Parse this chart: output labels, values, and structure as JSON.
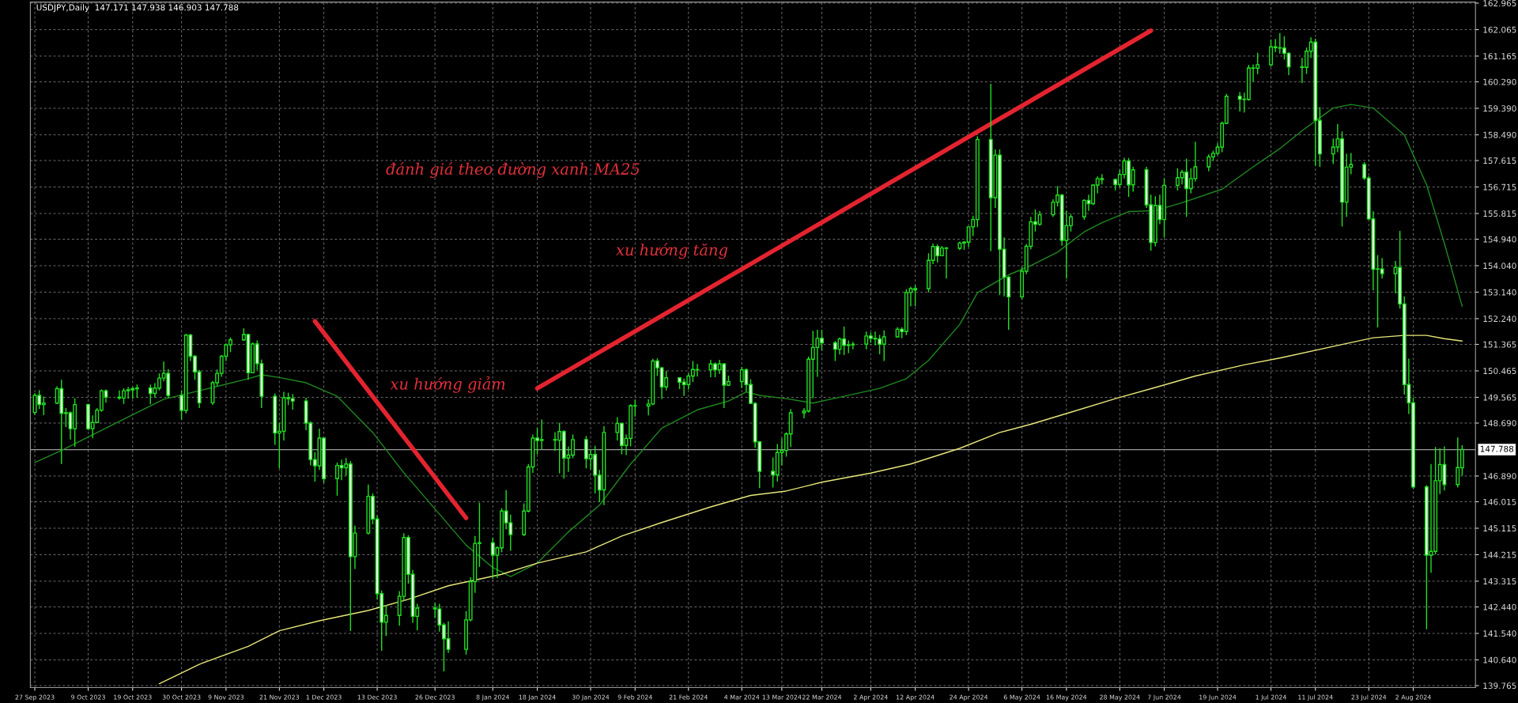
{
  "chart_data": {
    "type": "candlestick",
    "title": "USDJPY,Daily  147.171 147.938 146.903 147.788",
    "color": "#22e022",
    "grid": true,
    "x": [
      "2023-09-27",
      "2023-09-28",
      "2023-09-29",
      "2023-10-02",
      "2023-10-03",
      "2023-10-04",
      "2023-10-05",
      "2023-10-06",
      "2023-10-09",
      "2023-10-10",
      "2023-10-11",
      "2023-10-12",
      "2023-10-13",
      "2023-10-16",
      "2023-10-17",
      "2023-10-18",
      "2023-10-19",
      "2023-10-20",
      "2023-10-23",
      "2023-10-24",
      "2023-10-25",
      "2023-10-26",
      "2023-10-27",
      "2023-10-30",
      "2023-10-31",
      "2023-11-01",
      "2023-11-02",
      "2023-11-03",
      "2023-11-06",
      "2023-11-07",
      "2023-11-08",
      "2023-11-09",
      "2023-11-10",
      "2023-11-13",
      "2023-11-14",
      "2023-11-15",
      "2023-11-16",
      "2023-11-17",
      "2023-11-20",
      "2023-11-21",
      "2023-11-22",
      "2023-11-23",
      "2023-11-24",
      "2023-11-27",
      "2023-11-28",
      "2023-11-29",
      "2023-11-30",
      "2023-12-01",
      "2023-12-04",
      "2023-12-05",
      "2023-12-06",
      "2023-12-07",
      "2023-12-08",
      "2023-12-11",
      "2023-12-12",
      "2023-12-13",
      "2023-12-14",
      "2023-12-15",
      "2023-12-18",
      "2023-12-19",
      "2023-12-20",
      "2023-12-21",
      "2023-12-22",
      "2023-12-26",
      "2023-12-27",
      "2023-12-28",
      "2023-12-29",
      "2024-01-02",
      "2024-01-03",
      "2024-01-04",
      "2024-01-05",
      "2024-01-08",
      "2024-01-09",
      "2024-01-10",
      "2024-01-11",
      "2024-01-12",
      "2024-01-15",
      "2024-01-16",
      "2024-01-17",
      "2024-01-18",
      "2024-01-19",
      "2024-01-22",
      "2024-01-23",
      "2024-01-24",
      "2024-01-25",
      "2024-01-26",
      "2024-01-29",
      "2024-01-30",
      "2024-01-31",
      "2024-02-01",
      "2024-02-02",
      "2024-02-05",
      "2024-02-06",
      "2024-02-07",
      "2024-02-08",
      "2024-02-09",
      "2024-02-12",
      "2024-02-13",
      "2024-02-14",
      "2024-02-15",
      "2024-02-16",
      "2024-02-19",
      "2024-02-20",
      "2024-02-21",
      "2024-02-22",
      "2024-02-23",
      "2024-02-26",
      "2024-02-27",
      "2024-02-28",
      "2024-02-29",
      "2024-03-01",
      "2024-03-04",
      "2024-03-05",
      "2024-03-06",
      "2024-03-07",
      "2024-03-08",
      "2024-03-11",
      "2024-03-12",
      "2024-03-13",
      "2024-03-14",
      "2024-03-15",
      "2024-03-18",
      "2024-03-19",
      "2024-03-20",
      "2024-03-21",
      "2024-03-22",
      "2024-03-25",
      "2024-03-26",
      "2024-03-27",
      "2024-03-28",
      "2024-03-29",
      "2024-04-01",
      "2024-04-02",
      "2024-04-03",
      "2024-04-04",
      "2024-04-05",
      "2024-04-08",
      "2024-04-09",
      "2024-04-10",
      "2024-04-11",
      "2024-04-12",
      "2024-04-15",
      "2024-04-16",
      "2024-04-17",
      "2024-04-18",
      "2024-04-19",
      "2024-04-22",
      "2024-04-23",
      "2024-04-24",
      "2024-04-25",
      "2024-04-26",
      "2024-04-29",
      "2024-04-30",
      "2024-05-01",
      "2024-05-02",
      "2024-05-03",
      "2024-05-06",
      "2024-05-07",
      "2024-05-08",
      "2024-05-09",
      "2024-05-10",
      "2024-05-13",
      "2024-05-14",
      "2024-05-15",
      "2024-05-16",
      "2024-05-17",
      "2024-05-20",
      "2024-05-21",
      "2024-05-22",
      "2024-05-23",
      "2024-05-24",
      "2024-05-27",
      "2024-05-28",
      "2024-05-29",
      "2024-05-30",
      "2024-05-31",
      "2024-06-03",
      "2024-06-04",
      "2024-06-05",
      "2024-06-06",
      "2024-06-07",
      "2024-06-10",
      "2024-06-11",
      "2024-06-12",
      "2024-06-13",
      "2024-06-14",
      "2024-06-17",
      "2024-06-18",
      "2024-06-19",
      "2024-06-20",
      "2024-06-21",
      "2024-06-24",
      "2024-06-25",
      "2024-06-26",
      "2024-06-27",
      "2024-06-28",
      "2024-07-01",
      "2024-07-02",
      "2024-07-03",
      "2024-07-04",
      "2024-07-05",
      "2024-07-08",
      "2024-07-09",
      "2024-07-10",
      "2024-07-11",
      "2024-07-12",
      "2024-07-15",
      "2024-07-16",
      "2024-07-17",
      "2024-07-18",
      "2024-07-19",
      "2024-07-22",
      "2024-07-23",
      "2024-07-24",
      "2024-07-25",
      "2024-07-26",
      "2024-07-29",
      "2024-07-30",
      "2024-07-31",
      "2024-08-01",
      "2024-08-02",
      "2024-08-05",
      "2024-08-06",
      "2024-08-07",
      "2024-08-08",
      "2024-08-09",
      "2024-08-12",
      "2024-08-13"
    ],
    "ohlc": [
      [
        149.05,
        149.71,
        148.97,
        149.63
      ],
      [
        149.63,
        149.81,
        149.17,
        149.32
      ],
      [
        149.32,
        149.59,
        148.96,
        149.37
      ],
      [
        149.37,
        149.94,
        149.34,
        149.86
      ],
      [
        149.86,
        150.16,
        147.3,
        149.02
      ],
      [
        149.02,
        149.21,
        148.55,
        149.04
      ],
      [
        149.04,
        149.09,
        148.13,
        148.5
      ],
      [
        148.5,
        149.53,
        147.88,
        149.32
      ],
      [
        149.32,
        149.35,
        148.45,
        148.5
      ],
      [
        148.5,
        148.95,
        148.17,
        148.71
      ],
      [
        148.71,
        149.2,
        148.71,
        149.13
      ],
      [
        149.13,
        149.83,
        149.07,
        149.79
      ],
      [
        149.79,
        149.83,
        149.38,
        149.57
      ],
      [
        149.57,
        149.8,
        149.48,
        149.54
      ],
      [
        149.54,
        149.87,
        149.34,
        149.79
      ],
      [
        149.79,
        149.92,
        149.52,
        149.82
      ],
      [
        149.82,
        149.92,
        149.52,
        149.86
      ],
      [
        149.86,
        150.0,
        149.55,
        149.88
      ],
      [
        149.88,
        150.0,
        149.33,
        149.7
      ],
      [
        149.7,
        150.05,
        149.55,
        149.88
      ],
      [
        149.88,
        150.38,
        149.8,
        150.22
      ],
      [
        150.22,
        150.78,
        150.11,
        150.38
      ],
      [
        150.38,
        150.52,
        149.55,
        149.63
      ],
      [
        149.63,
        149.8,
        148.8,
        149.12
      ],
      [
        149.12,
        151.72,
        149.02,
        151.68
      ],
      [
        151.68,
        151.72,
        150.8,
        150.96
      ],
      [
        150.96,
        151.0,
        150.16,
        150.43
      ],
      [
        150.43,
        150.5,
        149.2,
        149.38
      ],
      [
        149.38,
        150.12,
        149.3,
        150.06
      ],
      [
        150.06,
        150.51,
        149.95,
        150.38
      ],
      [
        150.38,
        151.0,
        150.26,
        150.96
      ],
      [
        150.96,
        151.4,
        150.8,
        151.35
      ],
      [
        151.35,
        151.6,
        151.1,
        151.52
      ],
      [
        151.52,
        151.91,
        151.48,
        151.7
      ],
      [
        151.7,
        151.72,
        150.16,
        150.4
      ],
      [
        150.4,
        151.43,
        150.38,
        151.38
      ],
      [
        151.38,
        151.5,
        150.5,
        150.71
      ],
      [
        150.71,
        150.85,
        149.2,
        149.6
      ],
      [
        149.6,
        149.7,
        147.95,
        148.35
      ],
      [
        148.35,
        148.7,
        147.15,
        148.41
      ],
      [
        148.41,
        149.75,
        148.1,
        149.55
      ],
      [
        149.55,
        149.72,
        149.3,
        149.52
      ],
      [
        149.52,
        149.68,
        149.15,
        149.44
      ],
      [
        149.44,
        149.55,
        148.45,
        148.69
      ],
      [
        148.69,
        148.75,
        147.25,
        147.45
      ],
      [
        147.45,
        147.7,
        146.7,
        147.24
      ],
      [
        147.24,
        148.5,
        147.1,
        148.18
      ],
      [
        148.18,
        148.2,
        146.65,
        146.8
      ],
      [
        146.8,
        147.35,
        146.22,
        147.25
      ],
      [
        147.25,
        147.45,
        146.75,
        147.17
      ],
      [
        147.17,
        147.5,
        146.9,
        147.3
      ],
      [
        147.3,
        147.4,
        141.62,
        144.15
      ],
      [
        144.15,
        145.2,
        143.73,
        144.95
      ],
      [
        144.95,
        146.6,
        144.9,
        146.2
      ],
      [
        146.2,
        146.3,
        145.25,
        145.43
      ],
      [
        145.43,
        145.55,
        142.7,
        142.89
      ],
      [
        142.89,
        143.0,
        140.95,
        141.92
      ],
      [
        141.92,
        142.5,
        141.45,
        142.15
      ],
      [
        142.15,
        142.98,
        141.8,
        142.8
      ],
      [
        142.8,
        144.95,
        142.65,
        144.8
      ],
      [
        144.8,
        144.88,
        143.23,
        143.55
      ],
      [
        143.55,
        143.7,
        141.9,
        142.12
      ],
      [
        142.12,
        142.55,
        141.65,
        142.4
      ],
      [
        142.4,
        142.58,
        142.07,
        142.37
      ],
      [
        142.37,
        142.55,
        141.6,
        141.83
      ],
      [
        141.83,
        141.9,
        140.25,
        141.36
      ],
      [
        141.36,
        141.95,
        140.88,
        141.0
      ],
      [
        141.0,
        142.3,
        140.82,
        142.0
      ],
      [
        142.0,
        143.45,
        141.95,
        143.3
      ],
      [
        143.3,
        144.85,
        142.92,
        144.6
      ],
      [
        144.6,
        145.98,
        143.8,
        144.62
      ],
      [
        144.62,
        144.8,
        143.4,
        144.2
      ],
      [
        144.2,
        144.5,
        143.42,
        144.45
      ],
      [
        144.45,
        145.8,
        144.3,
        145.7
      ],
      [
        145.7,
        146.41,
        145.08,
        145.3
      ],
      [
        145.3,
        145.58,
        144.35,
        144.9
      ],
      [
        144.9,
        145.96,
        144.85,
        145.7
      ],
      [
        145.7,
        147.3,
        145.65,
        147.2
      ],
      [
        147.2,
        148.3,
        147.0,
        148.18
      ],
      [
        148.18,
        148.52,
        147.63,
        148.1
      ],
      [
        148.1,
        148.81,
        147.8,
        148.13
      ],
      [
        148.13,
        148.38,
        147.75,
        148.11
      ],
      [
        148.11,
        148.7,
        146.98,
        148.4
      ],
      [
        148.4,
        148.45,
        146.8,
        147.5
      ],
      [
        147.5,
        147.9,
        147.03,
        147.6
      ],
      [
        147.6,
        148.3,
        147.5,
        148.13
      ],
      [
        148.13,
        148.25,
        147.15,
        147.48
      ],
      [
        147.48,
        147.8,
        147.12,
        147.62
      ],
      [
        147.62,
        147.92,
        146.3,
        146.92
      ],
      [
        146.92,
        147.1,
        146.0,
        146.42
      ],
      [
        146.42,
        148.58,
        145.9,
        148.37
      ],
      [
        148.37,
        148.89,
        148.1,
        148.68
      ],
      [
        148.68,
        148.7,
        147.63,
        147.93
      ],
      [
        147.93,
        148.3,
        147.6,
        148.17
      ],
      [
        148.17,
        149.33,
        147.9,
        149.28
      ],
      [
        149.28,
        149.48,
        148.91,
        149.27
      ],
      [
        149.27,
        149.5,
        148.95,
        149.34
      ],
      [
        149.34,
        150.88,
        149.3,
        150.8
      ],
      [
        150.8,
        150.89,
        150.29,
        150.57
      ],
      [
        150.57,
        150.6,
        149.51,
        149.92
      ],
      [
        149.92,
        150.47,
        149.8,
        150.23
      ],
      [
        150.23,
        150.25,
        149.85,
        150.08
      ],
      [
        150.08,
        150.2,
        149.62,
        150.0
      ],
      [
        150.0,
        150.38,
        149.83,
        150.29
      ],
      [
        150.29,
        150.8,
        150.09,
        150.51
      ],
      [
        150.51,
        150.7,
        150.27,
        150.5
      ],
      [
        150.5,
        150.84,
        150.25,
        150.7
      ],
      [
        150.7,
        150.75,
        150.25,
        150.5
      ],
      [
        150.5,
        150.84,
        150.36,
        150.7
      ],
      [
        150.7,
        150.73,
        149.2,
        149.98
      ],
      [
        149.98,
        150.3,
        149.95,
        150.1
      ],
      [
        150.1,
        150.6,
        149.88,
        150.5
      ],
      [
        150.5,
        150.55,
        149.76,
        150.0
      ],
      [
        150.0,
        150.18,
        149.34,
        149.36
      ],
      [
        149.36,
        149.4,
        147.85,
        148.05
      ],
      [
        148.05,
        148.08,
        146.48,
        147.05
      ],
      [
        147.05,
        147.52,
        146.5,
        146.93
      ],
      [
        146.93,
        147.98,
        146.7,
        147.69
      ],
      [
        147.69,
        148.17,
        147.26,
        147.76
      ],
      [
        147.76,
        148.38,
        147.55,
        148.32
      ],
      [
        148.32,
        149.17,
        147.88,
        149.04
      ],
      [
        149.04,
        149.2,
        148.85,
        149.1
      ],
      [
        149.1,
        150.95,
        149.05,
        150.86
      ],
      [
        150.86,
        151.82,
        149.53,
        151.26
      ],
      [
        151.26,
        151.86,
        150.26,
        151.57
      ],
      [
        151.57,
        151.86,
        151.15,
        151.42
      ],
      [
        151.42,
        151.48,
        150.8,
        151.2
      ],
      [
        151.2,
        151.6,
        151.02,
        151.55
      ],
      [
        151.55,
        151.97,
        151.0,
        151.33
      ],
      [
        151.33,
        151.5,
        151.07,
        151.35
      ],
      [
        151.35,
        151.45,
        151.2,
        151.37
      ],
      [
        151.37,
        151.8,
        151.2,
        151.65
      ],
      [
        151.65,
        151.77,
        151.42,
        151.57
      ],
      [
        151.57,
        151.8,
        151.33,
        151.55
      ],
      [
        151.55,
        151.69,
        151.03,
        151.37
      ],
      [
        151.37,
        151.84,
        150.8,
        151.62
      ],
      [
        151.62,
        151.95,
        151.6,
        151.88
      ],
      [
        151.88,
        151.94,
        151.57,
        151.8
      ],
      [
        151.8,
        153.24,
        151.68,
        153.13
      ],
      [
        153.13,
        153.32,
        152.66,
        153.26
      ],
      [
        153.22,
        153.39,
        152.66,
        153.26
      ],
      [
        153.26,
        154.46,
        153.13,
        154.22
      ],
      [
        154.22,
        154.79,
        154.09,
        154.69
      ],
      [
        154.69,
        154.76,
        154.15,
        154.38
      ],
      [
        154.38,
        154.71,
        154.36,
        154.64
      ],
      [
        154.64,
        154.68,
        153.6,
        154.63
      ],
      [
        154.63,
        154.86,
        154.57,
        154.81
      ],
      [
        154.81,
        154.88,
        154.58,
        154.84
      ],
      [
        154.84,
        155.37,
        154.67,
        155.36
      ],
      [
        155.36,
        155.74,
        155.05,
        155.61
      ],
      [
        155.61,
        158.44,
        155.35,
        158.33
      ],
      [
        158.33,
        160.22,
        154.54,
        156.35
      ],
      [
        156.35,
        157.99,
        156.0,
        157.8
      ],
      [
        157.8,
        157.99,
        153.04,
        154.6
      ],
      [
        154.6,
        155.0,
        153.0,
        153.65
      ],
      [
        153.65,
        153.7,
        151.86,
        152.98
      ],
      [
        152.98,
        154.0,
        152.9,
        153.85
      ],
      [
        153.85,
        154.78,
        153.75,
        154.7
      ],
      [
        154.7,
        155.7,
        154.6,
        155.53
      ],
      [
        155.53,
        155.95,
        155.2,
        155.45
      ],
      [
        155.45,
        155.9,
        155.4,
        155.77
      ],
      [
        155.77,
        156.3,
        155.7,
        156.2
      ],
      [
        156.2,
        156.75,
        156.05,
        156.44
      ],
      [
        156.44,
        156.48,
        154.72,
        154.9
      ],
      [
        154.9,
        155.9,
        153.6,
        155.4
      ],
      [
        155.4,
        155.8,
        155.2,
        155.7
      ],
      [
        155.7,
        156.3,
        155.6,
        156.26
      ],
      [
        156.26,
        156.45,
        155.9,
        156.15
      ],
      [
        156.15,
        156.8,
        156.1,
        156.78
      ],
      [
        156.78,
        157.08,
        156.5,
        157.0
      ],
      [
        157.0,
        157.15,
        156.8,
        156.97
      ],
      [
        156.97,
        157.0,
        156.6,
        156.8
      ],
      [
        156.8,
        157.3,
        156.7,
        157.14
      ],
      [
        157.14,
        157.71,
        157.0,
        157.6
      ],
      [
        157.6,
        157.7,
        156.38,
        156.79
      ],
      [
        156.79,
        157.4,
        156.55,
        157.3
      ],
      [
        157.3,
        157.4,
        156.0,
        156.11
      ],
      [
        156.11,
        156.45,
        154.55,
        154.83
      ],
      [
        154.83,
        156.4,
        154.7,
        156.09
      ],
      [
        156.09,
        156.45,
        155.45,
        155.61
      ],
      [
        155.61,
        157.0,
        155.0,
        156.77
      ],
      [
        156.77,
        157.35,
        156.6,
        157.03
      ],
      [
        157.03,
        157.3,
        156.8,
        157.22
      ],
      [
        157.22,
        157.68,
        155.7,
        156.66
      ],
      [
        156.66,
        157.35,
        156.5,
        157.0
      ],
      [
        157.0,
        158.25,
        156.9,
        157.4
      ],
      [
        157.4,
        157.82,
        157.25,
        157.74
      ],
      [
        157.74,
        157.95,
        157.6,
        157.86
      ],
      [
        157.86,
        158.2,
        157.8,
        158.07
      ],
      [
        158.07,
        158.94,
        157.9,
        158.88
      ],
      [
        158.88,
        159.88,
        158.86,
        159.8
      ],
      [
        159.8,
        159.95,
        159.28,
        159.7
      ],
      [
        159.7,
        159.92,
        159.25,
        159.69
      ],
      [
        159.69,
        160.87,
        159.65,
        160.76
      ],
      [
        160.76,
        160.88,
        160.3,
        160.75
      ],
      [
        160.75,
        161.28,
        160.55,
        160.87
      ],
      [
        160.87,
        161.72,
        160.81,
        161.48
      ],
      [
        161.48,
        161.75,
        161.3,
        161.45
      ],
      [
        161.45,
        161.95,
        161.25,
        161.44
      ],
      [
        161.44,
        161.84,
        161.05,
        161.26
      ],
      [
        161.26,
        161.3,
        160.52,
        160.8
      ],
      [
        160.8,
        161.1,
        160.25,
        160.78
      ],
      [
        160.78,
        161.45,
        160.56,
        161.33
      ],
      [
        161.33,
        161.8,
        161.1,
        161.64
      ],
      [
        161.64,
        161.76,
        157.44,
        158.98
      ],
      [
        158.98,
        159.43,
        157.4,
        157.84
      ],
      [
        157.84,
        158.36,
        157.5,
        158.07
      ],
      [
        158.07,
        158.86,
        157.9,
        158.35
      ],
      [
        158.35,
        158.6,
        155.37,
        156.2
      ],
      [
        156.2,
        157.84,
        155.7,
        157.39
      ],
      [
        157.39,
        157.87,
        157.15,
        157.48
      ],
      [
        157.48,
        157.56,
        156.95,
        157.02
      ],
      [
        157.02,
        157.09,
        155.6,
        155.63
      ],
      [
        155.63,
        155.89,
        153.2,
        153.92
      ],
      [
        153.92,
        154.4,
        151.94,
        153.93
      ],
      [
        153.93,
        154.3,
        153.6,
        153.77
      ],
      [
        153.77,
        154.2,
        153.1,
        153.98
      ],
      [
        153.98,
        155.22,
        152.58,
        152.74
      ],
      [
        152.74,
        153.0,
        149.66,
        150.0
      ],
      [
        150.0,
        150.88,
        149.0,
        149.38
      ],
      [
        149.38,
        149.55,
        146.45,
        146.52
      ],
      [
        146.52,
        146.58,
        141.68,
        144.2
      ],
      [
        144.2,
        147.3,
        143.6,
        144.33
      ],
      [
        144.33,
        147.88,
        144.23,
        146.73
      ],
      [
        146.73,
        147.83,
        146.28,
        147.28
      ],
      [
        147.28,
        147.9,
        146.4,
        146.6
      ],
      [
        146.6,
        148.2,
        146.5,
        147.18
      ],
      [
        147.171,
        147.938,
        146.903,
        147.788
      ]
    ],
    "series": [
      {
        "type": "line",
        "color": "#1f8a1f",
        "x": [
          "2023-09-27",
          "2023-10-03",
          "2023-10-16",
          "2023-10-26",
          "2023-11-06",
          "2023-11-14",
          "2023-11-17",
          "2023-11-21",
          "2023-11-27",
          "2023-12-04",
          "2023-12-12",
          "2023-12-19",
          "2023-12-26",
          "2024-01-02",
          "2024-01-08",
          "2024-01-12",
          "2024-01-18",
          "2024-01-25",
          "2024-02-01",
          "2024-02-08",
          "2024-02-15",
          "2024-02-23",
          "2024-03-01",
          "2024-03-05",
          "2024-03-08",
          "2024-03-14",
          "2024-03-20",
          "2024-03-27",
          "2024-04-04",
          "2024-04-10",
          "2024-04-15",
          "2024-04-22",
          "2024-04-26",
          "2024-05-03",
          "2024-05-08",
          "2024-05-14",
          "2024-05-20",
          "2024-05-24",
          "2024-05-30",
          "2024-06-05",
          "2024-06-11",
          "2024-06-20",
          "2024-06-27",
          "2024-07-03",
          "2024-07-08",
          "2024-07-15",
          "2024-07-19",
          "2024-07-24",
          "2024-07-31",
          "2024-08-05",
          "2024-08-09",
          "2024-08-13"
        ],
        "values": [
          147.35,
          147.76,
          148.75,
          149.5,
          149.9,
          150.2,
          150.33,
          150.24,
          150.06,
          149.6,
          148.37,
          147.0,
          145.77,
          144.54,
          143.78,
          143.47,
          143.93,
          144.99,
          145.9,
          147.3,
          148.52,
          149.14,
          149.44,
          149.75,
          149.63,
          149.52,
          149.37,
          149.6,
          149.87,
          150.2,
          150.82,
          152.04,
          153.12,
          153.73,
          154.04,
          154.5,
          155.19,
          155.5,
          155.88,
          155.91,
          156.18,
          156.64,
          157.4,
          158.02,
          158.63,
          159.4,
          159.52,
          159.4,
          158.48,
          156.79,
          154.8,
          152.66
        ]
      },
      {
        "type": "line",
        "color": "#e6e67a",
        "x": [
          "2023-10-25",
          "2023-11-03",
          "2023-11-14",
          "2023-11-21",
          "2023-11-30",
          "2023-12-11",
          "2023-12-20",
          "2023-12-29",
          "2024-01-10",
          "2024-01-18",
          "2024-01-29",
          "2024-02-06",
          "2024-02-15",
          "2024-02-26",
          "2024-03-06",
          "2024-03-14",
          "2024-03-22",
          "2024-04-02",
          "2024-04-11",
          "2024-04-22",
          "2024-05-01",
          "2024-05-08",
          "2024-05-17",
          "2024-05-27",
          "2024-06-05",
          "2024-06-14",
          "2024-06-25",
          "2024-07-03",
          "2024-07-17",
          "2024-07-24",
          "2024-07-31",
          "2024-08-05",
          "2024-08-09",
          "2024-08-13"
        ],
        "values": [
          139.83,
          140.49,
          141.1,
          141.63,
          141.97,
          142.32,
          142.7,
          143.16,
          143.55,
          143.93,
          144.31,
          144.85,
          145.31,
          145.84,
          146.23,
          146.38,
          146.68,
          146.99,
          147.3,
          147.83,
          148.37,
          148.65,
          149.06,
          149.52,
          149.9,
          150.29,
          150.67,
          150.9,
          151.36,
          151.59,
          151.67,
          151.67,
          151.56,
          151.48
        ]
      },
      {
        "type": "line",
        "color": "#e3242f",
        "x": [
          "2023-11-29",
          "2024-01-02"
        ],
        "values": [
          152.15,
          145.46
        ]
      },
      {
        "type": "line",
        "color": "#e3242f",
        "x": [
          "2024-01-18",
          "2024-06-04"
        ],
        "values": [
          149.87,
          162.03
        ]
      }
    ],
    "annotations": [
      "đánh giá theo đường xanh MA25",
      "xu hướng tăng",
      "xu hướng giảm"
    ],
    "ref_lines": [
      {
        "axis": "y",
        "value": 147.788,
        "label": "147.788",
        "color": "#9a9a9a"
      }
    ],
    "xlim": [
      "2023-09-26",
      "2024-08-16"
    ],
    "ylim": [
      139.7,
      163.0
    ],
    "yticks": [
      {
        "value": 139.765,
        "label": "139.765"
      },
      {
        "value": 140.64,
        "label": "140.640"
      },
      {
        "value": 141.54,
        "label": "141.540"
      },
      {
        "value": 142.44,
        "label": "142.440"
      },
      {
        "value": 143.315,
        "label": "143.315"
      },
      {
        "value": 144.215,
        "label": "144.215"
      },
      {
        "value": 145.115,
        "label": "145.115"
      },
      {
        "value": 146.015,
        "label": "146.015"
      },
      {
        "value": 146.89,
        "label": "146.890"
      },
      {
        "value": 148.69,
        "label": "148.690"
      },
      {
        "value": 149.565,
        "label": "149.565"
      },
      {
        "value": 150.465,
        "label": "150.465"
      },
      {
        "value": 151.365,
        "label": "151.365"
      },
      {
        "value": 152.24,
        "label": "152.240"
      },
      {
        "value": 153.14,
        "label": "153.140"
      },
      {
        "value": 154.04,
        "label": "154.040"
      },
      {
        "value": 154.94,
        "label": "154.940"
      },
      {
        "value": 155.815,
        "label": "155.815"
      },
      {
        "value": 156.715,
        "label": "156.715"
      },
      {
        "value": 157.615,
        "label": "157.615"
      },
      {
        "value": 158.49,
        "label": "158.490"
      },
      {
        "value": 159.39,
        "label": "159.390"
      },
      {
        "value": 160.29,
        "label": "160.290"
      },
      {
        "value": 161.165,
        "label": "161.165"
      },
      {
        "value": 162.065,
        "label": "162.065"
      },
      {
        "value": 162.965,
        "label": "162.965"
      }
    ],
    "xticks": [
      {
        "value": "2023-09-27",
        "label": "27 Sep 2023"
      },
      {
        "value": "2023-10-09",
        "label": "9 Oct 2023"
      },
      {
        "value": "2023-10-19",
        "label": "19 Oct 2023"
      },
      {
        "value": "2023-10-30",
        "label": "30 Oct 2023"
      },
      {
        "value": "2023-11-09",
        "label": "9 Nov 2023"
      },
      {
        "value": "2023-11-21",
        "label": "21 Nov 2023"
      },
      {
        "value": "2023-12-01",
        "label": "1 Dec 2023"
      },
      {
        "value": "2023-12-13",
        "label": "13 Dec 2023"
      },
      {
        "value": "2023-12-26",
        "label": "26 Dec 2023"
      },
      {
        "value": "2024-01-08",
        "label": "8 Jan 2024"
      },
      {
        "value": "2024-01-18",
        "label": "18 Jan 2024"
      },
      {
        "value": "2024-01-30",
        "label": "30 Jan 2024"
      },
      {
        "value": "2024-02-09",
        "label": "9 Feb 2024"
      },
      {
        "value": "2024-02-21",
        "label": "21 Feb 2024"
      },
      {
        "value": "2024-03-04",
        "label": "4 Mar 2024"
      },
      {
        "value": "2024-03-13",
        "label": "13 Mar 2024"
      },
      {
        "value": "2024-03-22",
        "label": "22 Mar 2024"
      },
      {
        "value": "2024-04-02",
        "label": "2 Apr 2024"
      },
      {
        "value": "2024-04-12",
        "label": "12 Apr 2024"
      },
      {
        "value": "2024-04-24",
        "label": "24 Apr 2024"
      },
      {
        "value": "2024-05-06",
        "label": "6 May 2024"
      },
      {
        "value": "2024-05-16",
        "label": "16 May 2024"
      },
      {
        "value": "2024-05-28",
        "label": "28 May 2024"
      },
      {
        "value": "2024-06-07",
        "label": "7 Jun 2024"
      },
      {
        "value": "2024-06-19",
        "label": "19 Jun 2024"
      },
      {
        "value": "2024-07-01",
        "label": "1 Jul 2024"
      },
      {
        "value": "2024-07-11",
        "label": "11 Jul 2024"
      },
      {
        "value": "2024-07-23",
        "label": "23 Jul 2024"
      },
      {
        "value": "2024-08-02",
        "label": "2 Aug 2024"
      }
    ]
  }
}
